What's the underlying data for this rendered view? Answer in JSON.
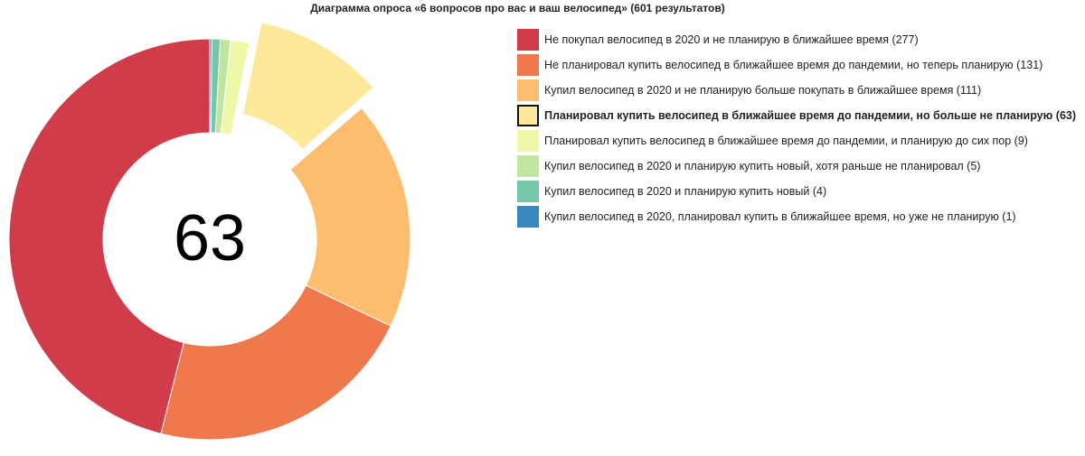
{
  "title": "Диаграмма опроса «6 вопросов про вас и ваш велосипед» (601 результатов)",
  "center_value": "63",
  "highlighted_index": 3,
  "chart_data": {
    "type": "pie",
    "title": "Диаграмма опроса «6 вопросов про вас и ваш велосипед» (601 результатов)",
    "total": 601,
    "legend_position": "right",
    "slices": [
      {
        "label": "Не покупал велосипед в 2020 и не планирую в ближайшее время (277)",
        "value": 277,
        "color": "#d13c4b"
      },
      {
        "label": "Не планировал купить велосипед в ближайшее время до пандемии, но теперь планирую (131)",
        "value": 131,
        "color": "#f0784d"
      },
      {
        "label": "Купил велосипед в 2020 и не планирую больше покупать в ближайшее время (111)",
        "value": 111,
        "color": "#fcbe6e"
      },
      {
        "label": "Планировал купить велосипед в ближайшее время до пандемии, но больше не планирую (63)",
        "value": 63,
        "color": "#fee89a"
      },
      {
        "label": "Планировал купить велосипед в ближайшее время до пандемии, и планирую до сих пор (9)",
        "value": 9,
        "color": "#eef8a8"
      },
      {
        "label": "Купил велосипед в 2020 и планирую купить новый, хотя раньше не планировал (5)",
        "value": 5,
        "color": "#bfe5a0"
      },
      {
        "label": "Купил велосипед в 2020 и планирую купить новый (4)",
        "value": 4,
        "color": "#74c7a5"
      },
      {
        "label": "Купил велосипед в 2020, планировал купить в ближайшее время, но уже не планирую (1)",
        "value": 1,
        "color": "#3b88c0"
      }
    ]
  }
}
